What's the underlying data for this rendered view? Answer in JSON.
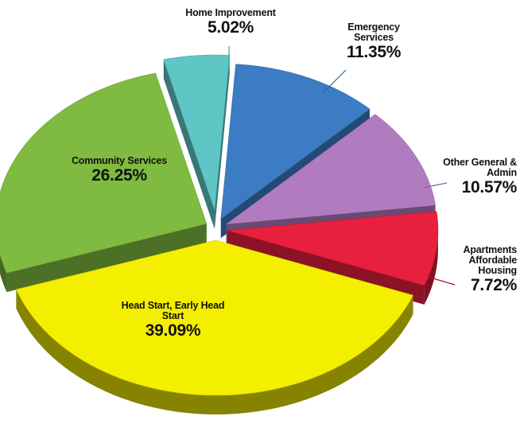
{
  "chart_data": {
    "type": "pie",
    "categories": [
      "Home Improvement",
      "Emergency Services",
      "Other General & Admin",
      "Apartments Affordable Housing",
      "Head Start, Early Head Start",
      "Community Services"
    ],
    "values": [
      5.02,
      11.35,
      10.57,
      7.72,
      39.09,
      26.25
    ],
    "value_labels": [
      "5.02%",
      "11.35%",
      "10.57%",
      "7.72%",
      "39.09%",
      "26.25%"
    ],
    "colors": [
      "#5ec6c4",
      "#3b7cc4",
      "#b07cbf",
      "#e81f3d",
      "#f4ee00",
      "#7fbb40"
    ]
  }
}
